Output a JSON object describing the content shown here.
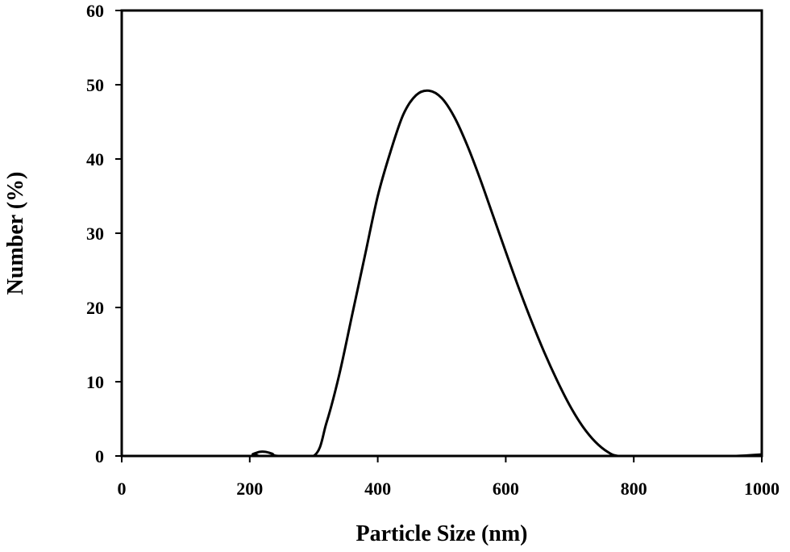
{
  "chart_data": {
    "type": "line",
    "xlabel": "Particle Size (nm)",
    "ylabel": "Number (%)",
    "xlim": [
      0,
      1000
    ],
    "ylim": [
      0,
      60
    ],
    "xticks": [
      0,
      200,
      400,
      600,
      800,
      1000
    ],
    "yticks": [
      0,
      10,
      20,
      30,
      40,
      50,
      60
    ],
    "grid": false,
    "legend": "none",
    "series": [
      {
        "color": "#000000",
        "x": [
          0,
          195,
          205,
          215,
          225,
          235,
          245,
          300,
          320,
          340,
          360,
          380,
          400,
          420,
          440,
          460,
          480,
          500,
          520,
          540,
          560,
          580,
          600,
          620,
          640,
          660,
          680,
          700,
          720,
          740,
          760,
          775,
          800,
          900,
          960,
          1000
        ],
        "y": [
          0,
          0,
          0.25,
          0.55,
          0.55,
          0.3,
          0,
          0,
          4.5,
          11,
          19,
          27,
          35,
          41,
          46,
          48.6,
          49.2,
          48.2,
          45.6,
          41.8,
          37.3,
          32.4,
          27.5,
          22.7,
          18.2,
          14,
          10.2,
          6.8,
          4,
          1.9,
          0.5,
          0,
          0,
          0,
          0,
          0.2
        ]
      }
    ]
  }
}
